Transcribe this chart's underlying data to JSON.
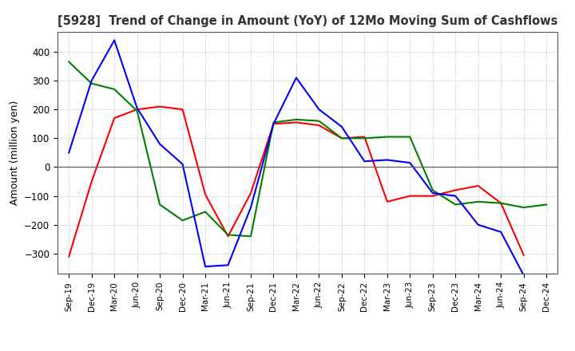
{
  "title": "[5928]  Trend of Change in Amount (YoY) of 12Mo Moving Sum of Cashflows",
  "ylabel": "Amount (million yen)",
  "ylim": [
    -370,
    470
  ],
  "yticks": [
    -300,
    -200,
    -100,
    0,
    100,
    200,
    300,
    400
  ],
  "x_labels": [
    "Sep-19",
    "Dec-19",
    "Mar-20",
    "Jun-20",
    "Sep-20",
    "Dec-20",
    "Mar-21",
    "Jun-21",
    "Sep-21",
    "Dec-21",
    "Mar-22",
    "Jun-22",
    "Sep-22",
    "Dec-22",
    "Mar-23",
    "Jun-23",
    "Sep-23",
    "Dec-23",
    "Mar-24",
    "Jun-24",
    "Sep-24",
    "Dec-24"
  ],
  "operating": [
    -310,
    -50,
    170,
    200,
    210,
    200,
    -95,
    -240,
    -90,
    150,
    155,
    145,
    100,
    105,
    -120,
    -100,
    -100,
    -80,
    -65,
    -125,
    -305,
    null
  ],
  "investing": [
    365,
    290,
    270,
    195,
    -130,
    -185,
    -155,
    -235,
    -240,
    155,
    165,
    160,
    100,
    100,
    105,
    105,
    -80,
    -130,
    -120,
    -125,
    -140,
    -130
  ],
  "free": [
    50,
    300,
    440,
    205,
    80,
    10,
    -345,
    -340,
    -140,
    150,
    310,
    200,
    140,
    20,
    25,
    15,
    -90,
    -100,
    -200,
    -225,
    -375,
    null
  ],
  "operating_color": "#ff0000",
  "investing_color": "#008000",
  "free_color": "#0000ff",
  "background_color": "#ffffff",
  "grid_color": "#aaaaaa"
}
